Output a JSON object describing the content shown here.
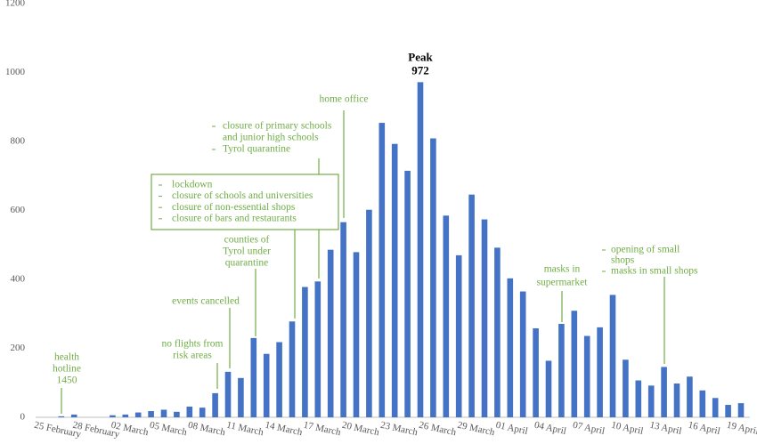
{
  "chart_data": {
    "type": "bar",
    "color": "#4472c4",
    "annotation_color": "#70ad47",
    "categories": [
      "25 February",
      null,
      null,
      "28 February",
      null,
      null,
      "02 March",
      null,
      null,
      "05 March",
      null,
      null,
      "08 March",
      null,
      null,
      "11 March",
      null,
      null,
      "14 March",
      null,
      null,
      "17 March",
      null,
      null,
      "20 March",
      null,
      null,
      "23 March",
      null,
      null,
      "26 March",
      null,
      null,
      "29 March",
      null,
      null,
      "01 April",
      null,
      null,
      "04 April",
      null,
      null,
      "07 April",
      null,
      null,
      "10 April",
      null,
      null,
      "13 April",
      null,
      null,
      "16 April",
      null,
      null,
      "19 April"
    ],
    "values": [
      0,
      3,
      8,
      0,
      0,
      6,
      8,
      14,
      18,
      22,
      16,
      31,
      28,
      70,
      132,
      114,
      230,
      184,
      218,
      278,
      378,
      394,
      486,
      566,
      479,
      602,
      854,
      793,
      715,
      972,
      809,
      585,
      470,
      646,
      574,
      492,
      403,
      365,
      258,
      164,
      271,
      309,
      236,
      261,
      355,
      167,
      107,
      92,
      146,
      98,
      118,
      78,
      56,
      36,
      41
    ],
    "ylim": [
      0,
      1200
    ],
    "yticks": [
      0,
      200,
      400,
      600,
      800,
      1000,
      1200
    ],
    "grid": false,
    "peak_label": "Peak",
    "annotations": [
      {
        "lines": [
          "health",
          "hotline",
          "1450"
        ]
      },
      {
        "lines": [
          "no flights from",
          "risk areas"
        ]
      },
      {
        "lines": [
          "events cancelled"
        ]
      },
      {
        "lines": [
          "counties of",
          "Tyrol under",
          "quarantine"
        ]
      },
      {
        "lines": [
          "closure of primary schools",
          "and junior high schools",
          "Tyrol quarantine"
        ]
      },
      {
        "lines": [
          "lockdown",
          "closure of schools and universities",
          "closure of non-essential shops",
          "closure of bars and restaurants"
        ]
      },
      {
        "lines": [
          "home office"
        ]
      },
      {
        "lines": [
          "masks in",
          "supermarket"
        ]
      },
      {
        "lines": [
          "opening of small",
          "shops",
          "masks in small shops"
        ]
      }
    ]
  }
}
